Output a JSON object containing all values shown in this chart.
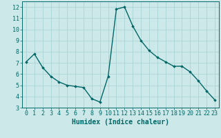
{
  "x": [
    0,
    1,
    2,
    3,
    4,
    5,
    6,
    7,
    8,
    9,
    10,
    11,
    12,
    13,
    14,
    15,
    16,
    17,
    18,
    19,
    20,
    21,
    22,
    23
  ],
  "y": [
    7.1,
    7.8,
    6.6,
    5.8,
    5.3,
    5.0,
    4.9,
    4.8,
    3.8,
    3.5,
    5.8,
    11.8,
    12.0,
    10.3,
    9.0,
    8.1,
    7.5,
    7.1,
    6.7,
    6.7,
    6.2,
    5.4,
    4.5,
    3.7
  ],
  "line_color": "#006666",
  "marker": "D",
  "marker_size": 1.8,
  "bg_color": "#cce8e8",
  "grid_color": "#aad4d4",
  "xlabel": "Humidex (Indice chaleur)",
  "xlabel_fontsize": 7,
  "tick_fontsize": 6,
  "ylim": [
    3,
    12.5
  ],
  "xlim": [
    -0.5,
    23.5
  ],
  "yticks": [
    3,
    4,
    5,
    6,
    7,
    8,
    9,
    10,
    11,
    12
  ],
  "xticks": [
    0,
    1,
    2,
    3,
    4,
    5,
    6,
    7,
    8,
    9,
    10,
    11,
    12,
    13,
    14,
    15,
    16,
    17,
    18,
    19,
    20,
    21,
    22,
    23
  ],
  "line_width": 1.0
}
